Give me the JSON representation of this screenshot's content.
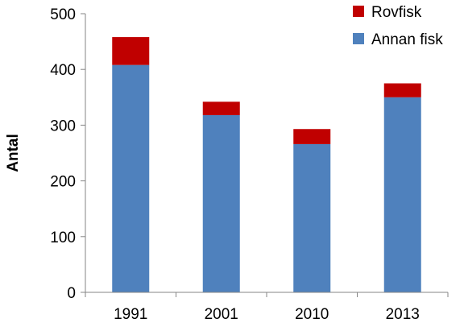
{
  "chart_data": {
    "type": "bar",
    "stacked": true,
    "categories": [
      "1991",
      "2001",
      "2010",
      "2013"
    ],
    "series": [
      {
        "name": "Annan fisk",
        "values": [
          408,
          318,
          266,
          350
        ],
        "color": "#4f81bd"
      },
      {
        "name": "Rovfisk",
        "values": [
          50,
          24,
          27,
          25
        ],
        "color": "#c00000"
      }
    ],
    "title": "",
    "xlabel": "",
    "ylabel": "Antal",
    "ylim": [
      0,
      500
    ],
    "yticks": [
      "0",
      "100",
      "200",
      "300",
      "400",
      "500"
    ],
    "grid": false,
    "legend_position": "top-right",
    "legend_order": [
      "Rovfisk",
      "Annan fisk"
    ]
  }
}
